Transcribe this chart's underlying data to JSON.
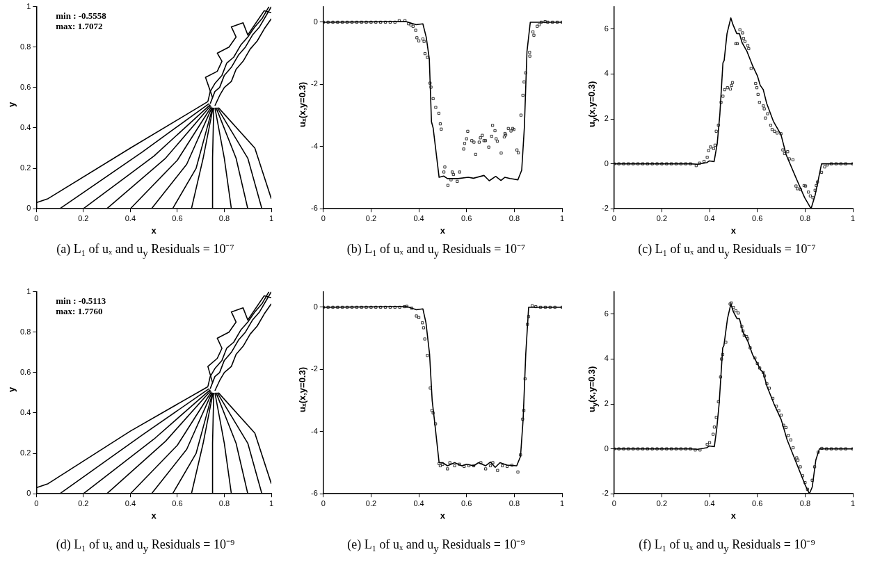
{
  "chart_data": [
    {
      "type": "line",
      "title": "(a) L₁ of uₓ and u$_{y}$ Residuals = 10⁻⁷",
      "xlabel": "x",
      "ylabel": "y",
      "xlim": [
        0,
        1
      ],
      "ylim": [
        0,
        1
      ],
      "xticks": [
        0,
        0.2,
        0.4,
        0.6,
        0.8,
        1
      ],
      "yticks": [
        0,
        0.2,
        0.4,
        0.6,
        0.8,
        1
      ],
      "annotations": [
        "min : -0.5558",
        "max: 1.7072"
      ],
      "line_style": "solid",
      "series": [
        {
          "color": "#000000",
          "x": [
            0,
            0.05,
            0.4,
            0.73
          ],
          "values": [
            0.03,
            0.05,
            0.3,
            0.53
          ]
        },
        {
          "color": "#000000",
          "x": [
            0.1,
            0.45,
            0.735
          ],
          "values": [
            0,
            0.28,
            0.52
          ]
        },
        {
          "color": "#000000",
          "x": [
            0.2,
            0.5,
            0.74
          ],
          "values": [
            0,
            0.26,
            0.515
          ]
        },
        {
          "color": "#000000",
          "x": [
            0.3,
            0.55,
            0.742
          ],
          "values": [
            0,
            0.25,
            0.51
          ]
        },
        {
          "color": "#000000",
          "x": [
            0.4,
            0.6,
            0.745
          ],
          "values": [
            0,
            0.24,
            0.505
          ]
        },
        {
          "color": "#000000",
          "x": [
            0.49,
            0.64,
            0.747
          ],
          "values": [
            0,
            0.22,
            0.5
          ]
        },
        {
          "color": "#000000",
          "x": [
            0.58,
            0.68,
            0.75
          ],
          "values": [
            0,
            0.2,
            0.5
          ]
        },
        {
          "color": "#000000",
          "x": [
            0.66,
            0.71,
            0.752
          ],
          "values": [
            0,
            0.25,
            0.5
          ]
        },
        {
          "color": "#000000",
          "x": [
            0.75,
            0.75,
            0.755
          ],
          "values": [
            0,
            0.25,
            0.5
          ]
        },
        {
          "color": "#000000",
          "x": [
            0.83,
            0.8,
            0.76
          ],
          "values": [
            0,
            0.25,
            0.5
          ]
        },
        {
          "color": "#000000",
          "x": [
            0.9,
            0.85,
            0.765
          ],
          "values": [
            0,
            0.25,
            0.5
          ]
        },
        {
          "color": "#000000",
          "x": [
            0.96,
            0.9,
            0.77
          ],
          "values": [
            0,
            0.25,
            0.5
          ]
        },
        {
          "color": "#000000",
          "x": [
            1,
            0.93,
            0.775
          ],
          "values": [
            0.05,
            0.3,
            0.5
          ]
        },
        {
          "color": "#000000",
          "x": [
            0.74,
            0.76,
            0.78,
            0.8,
            0.83,
            0.86,
            0.89,
            0.92,
            0.95,
            0.98,
            1
          ],
          "values": [
            0.52,
            0.58,
            0.6,
            0.66,
            0.7,
            0.76,
            0.8,
            0.86,
            0.9,
            0.96,
            1
          ]
        },
        {
          "color": "#000000",
          "x": [
            0.76,
            0.78,
            0.8,
            0.83,
            0.85,
            0.88,
            0.91,
            0.94,
            0.97,
            1
          ],
          "values": [
            0.51,
            0.56,
            0.6,
            0.63,
            0.69,
            0.73,
            0.79,
            0.83,
            0.89,
            0.94
          ]
        },
        {
          "color": "#000000",
          "x": [
            0.73,
            0.74,
            0.76,
            0.79,
            0.81,
            0.84,
            0.87,
            0.9,
            0.93,
            0.96,
            0.99
          ],
          "values": [
            0.53,
            0.58,
            0.62,
            0.66,
            0.72,
            0.75,
            0.81,
            0.85,
            0.9,
            0.94,
            1
          ]
        },
        {
          "color": "#000000",
          "x": [
            0.75,
            0.72,
            0.77,
            0.79,
            0.77,
            0.82,
            0.85,
            0.83,
            0.88,
            0.9,
            0.97,
            1
          ],
          "values": [
            0.55,
            0.65,
            0.68,
            0.73,
            0.77,
            0.8,
            0.85,
            0.9,
            0.92,
            0.86,
            0.98,
            0.97
          ]
        }
      ]
    },
    {
      "type": "line",
      "title": "(b) L₁ of uₓ and u$_{y}$ Residuals = 10⁻⁷",
      "xlabel": "x",
      "ylabel": "uₓ(x,y=0.3)",
      "xlim": [
        0,
        1
      ],
      "ylim": [
        -6,
        0.5
      ],
      "xticks": [
        0,
        0.2,
        0.4,
        0.6,
        0.8,
        1
      ],
      "yticks": [
        -6,
        -4,
        -2,
        0
      ],
      "line_style": "solid",
      "series": [
        {
          "type": "line",
          "marker": "none",
          "color": "#000000",
          "x": [
            0,
            0.346,
            0.389,
            0.417,
            0.431,
            0.444,
            0.453,
            0.46,
            0.485,
            0.504,
            0.52,
            0.564,
            0.607,
            0.629,
            0.673,
            0.695,
            0.722,
            0.744,
            0.76,
            0.782,
            0.815,
            0.831,
            0.842,
            0.853,
            0.867,
            1
          ],
          "values": [
            0,
            0.02,
            -0.08,
            -0.05,
            -0.48,
            -1.18,
            -3.2,
            -3.4,
            -4.99,
            -4.95,
            -5.03,
            -5.03,
            -4.99,
            -5.02,
            -4.93,
            -5.1,
            -4.96,
            -5.09,
            -4.99,
            -5.03,
            -5.07,
            -4.76,
            -3.4,
            -0.95,
            0,
            0
          ]
        },
        {
          "type": "scatter",
          "marker": "square",
          "color": "#333333",
          "x": [
            0,
            0.02,
            0.04,
            0.06,
            0.08,
            0.1,
            0.12,
            0.14,
            0.16,
            0.18,
            0.2,
            0.22,
            0.24,
            0.26,
            0.28,
            0.3,
            0.318,
            0.342,
            0.357,
            0.367,
            0.376,
            0.387,
            0.392,
            0.4,
            0.417,
            0.422,
            0.426,
            0.436,
            0.447,
            0.451,
            0.46,
            0.471,
            0.484,
            0.49,
            0.494,
            0.509,
            0.505,
            0.522,
            0.535,
            0.54,
            0.545,
            0.561,
            0.571,
            0.588,
            0.592,
            0.6,
            0.605,
            0.622,
            0.631,
            0.638,
            0.653,
            0.658,
            0.666,
            0.673,
            0.679,
            0.693,
            0.705,
            0.709,
            0.719,
            0.724,
            0.729,
            0.745,
            0.758,
            0.761,
            0.764,
            0.775,
            0.786,
            0.793,
            0.798,
            0.811,
            0.817,
            0.828,
            0.836,
            0.841,
            0.847,
            0.864,
            0.865,
            0.878,
            0.882,
            0.896,
            0.904,
            0.913,
            0.929,
            0.94,
            0.96,
            0.98,
            1
          ],
          "values": [
            0,
            0,
            0,
            0,
            0,
            0,
            0,
            0,
            0,
            0,
            0,
            0,
            0,
            0,
            0,
            0,
            0.05,
            0.05,
            -0.05,
            -0.09,
            -0.13,
            -0.26,
            -0.5,
            -0.6,
            -0.54,
            -0.62,
            -1.01,
            -1.13,
            -1.96,
            -2.09,
            -2.46,
            -2.74,
            -2.93,
            -3.27,
            -3.44,
            -4.66,
            -4.82,
            -5.25,
            -5.07,
            -4.82,
            -4.9,
            -5.12,
            -4.82,
            -4.08,
            -3.9,
            -3.75,
            -3.51,
            -3.81,
            -3.86,
            -4.25,
            -3.86,
            -3.72,
            -3.64,
            -3.81,
            -3.81,
            -4.02,
            -3.67,
            -3.32,
            -3.49,
            -3.75,
            -3.83,
            -4.21,
            -3.69,
            -3.58,
            -3.63,
            -3.42,
            -3.5,
            -3.42,
            -3.45,
            -4.11,
            -4.2,
            -2.99,
            -2.35,
            -1.92,
            -1.63,
            -0.97,
            -1.09,
            -0.31,
            -0.42,
            -0.13,
            -0.08,
            0,
            0.02,
            0,
            0,
            0,
            0
          ]
        }
      ]
    },
    {
      "type": "line",
      "title": "(c) L₁ of uₓ and u$_{y}$ Residuals = 10⁻⁷",
      "xlabel": "x",
      "ylabel": "u$_{y}$(x,y=0.3)",
      "xlim": [
        0,
        1
      ],
      "ylim": [
        -2,
        7
      ],
      "xticks": [
        0,
        0.2,
        0.4,
        0.6,
        0.8,
        1
      ],
      "yticks": [
        -2,
        0,
        2,
        4,
        6
      ],
      "line_style": "solid",
      "series": [
        {
          "type": "line",
          "marker": "none",
          "color": "#000000",
          "x": [
            0,
            0.317,
            0.35,
            0.388,
            0.399,
            0.419,
            0.432,
            0.443,
            0.456,
            0.461,
            0.473,
            0.489,
            0.498,
            0.514,
            0.525,
            0.536,
            0.557,
            0.579,
            0.601,
            0.612,
            0.625,
            0.639,
            0.667,
            0.699,
            0.721,
            0.765,
            0.798,
            0.825,
            0.842,
            0.869,
            1
          ],
          "values": [
            0,
            0,
            -0.02,
            0.05,
            0.13,
            0.1,
            0.9,
            2.2,
            4.5,
            4.6,
            5.8,
            6.5,
            6.2,
            5.8,
            5.8,
            5.4,
            5,
            4.4,
            3.9,
            3.5,
            3.3,
            2.7,
            1.9,
            1.3,
            0.4,
            -0.7,
            -1.5,
            -2,
            -1.4,
            0,
            0
          ]
        },
        {
          "type": "scatter",
          "marker": "square",
          "color": "#333333",
          "x": [
            0,
            0.02,
            0.04,
            0.06,
            0.08,
            0.1,
            0.12,
            0.14,
            0.16,
            0.18,
            0.2,
            0.22,
            0.24,
            0.26,
            0.28,
            0.3,
            0.32,
            0.344,
            0.358,
            0.377,
            0.39,
            0.396,
            0.404,
            0.417,
            0.423,
            0.428,
            0.437,
            0.448,
            0.456,
            0.463,
            0.475,
            0.487,
            0.492,
            0.496,
            0.51,
            0.516,
            0.527,
            0.538,
            0.542,
            0.548,
            0.56,
            0.564,
            0.574,
            0.593,
            0.598,
            0.603,
            0.609,
            0.625,
            0.629,
            0.634,
            0.643,
            0.656,
            0.662,
            0.672,
            0.683,
            0.699,
            0.707,
            0.714,
            0.727,
            0.734,
            0.749,
            0.762,
            0.768,
            0.781,
            0.796,
            0.802,
            0.814,
            0.822,
            0.833,
            0.842,
            0.847,
            0.852,
            0.869,
            0.882,
            0.893,
            0.91,
            0.93,
            0.95,
            0.97,
            1
          ],
          "values": [
            0,
            0,
            0,
            0,
            0,
            0,
            0,
            0,
            0,
            0,
            0,
            0,
            0,
            0,
            0,
            0,
            0,
            -0.08,
            0.03,
            0.11,
            0.29,
            0.59,
            0.75,
            0.68,
            0.83,
            1.45,
            1.72,
            2.74,
            3.01,
            3.3,
            3.39,
            3.33,
            3.49,
            3.62,
            5.35,
            5.35,
            5.97,
            5.83,
            5.59,
            5.45,
            5.27,
            5.13,
            4.25,
            3.58,
            3.39,
            3.09,
            2.74,
            2.58,
            2.45,
            2.04,
            2.23,
            1.72,
            1.53,
            1.45,
            1.37,
            1.34,
            0.62,
            0.46,
            0.54,
            0.22,
            0.18,
            -0.99,
            -1.11,
            -1.15,
            -0.97,
            -0.99,
            -1.26,
            -1.43,
            -1.51,
            -1.18,
            -0.97,
            -0.81,
            -0.38,
            -0.14,
            -0.05,
            0,
            0,
            0,
            0,
            0
          ]
        }
      ]
    },
    {
      "type": "line",
      "title": "(d) L₁ of uₓ and u$_{y}$ Residuals = 10⁻⁹",
      "xlabel": "x",
      "ylabel": "y",
      "xlim": [
        0,
        1
      ],
      "ylim": [
        0,
        1
      ],
      "xticks": [
        0,
        0.2,
        0.4,
        0.6,
        0.8,
        1
      ],
      "yticks": [
        0,
        0.2,
        0.4,
        0.6,
        0.8,
        1
      ],
      "annotations": [
        "min : -0.5113",
        "max: 1.7760"
      ],
      "line_style": "solid",
      "series": [
        {
          "color": "#000000",
          "x": [
            0,
            0.05,
            0.4,
            0.73
          ],
          "values": [
            0.03,
            0.05,
            0.31,
            0.53
          ]
        },
        {
          "color": "#000000",
          "x": [
            0.1,
            0.45,
            0.735
          ],
          "values": [
            0,
            0.29,
            0.52
          ]
        },
        {
          "color": "#000000",
          "x": [
            0.2,
            0.5,
            0.74
          ],
          "values": [
            0,
            0.27,
            0.515
          ]
        },
        {
          "color": "#000000",
          "x": [
            0.3,
            0.55,
            0.742
          ],
          "values": [
            0,
            0.26,
            0.51
          ]
        },
        {
          "color": "#000000",
          "x": [
            0.4,
            0.6,
            0.745
          ],
          "values": [
            0,
            0.24,
            0.505
          ]
        },
        {
          "color": "#000000",
          "x": [
            0.49,
            0.64,
            0.747
          ],
          "values": [
            0,
            0.22,
            0.5
          ]
        },
        {
          "color": "#000000",
          "x": [
            0.58,
            0.68,
            0.75
          ],
          "values": [
            0,
            0.2,
            0.5
          ]
        },
        {
          "color": "#000000",
          "x": [
            0.66,
            0.71,
            0.752
          ],
          "values": [
            0,
            0.25,
            0.5
          ]
        },
        {
          "color": "#000000",
          "x": [
            0.75,
            0.75,
            0.755
          ],
          "values": [
            0,
            0.25,
            0.5
          ]
        },
        {
          "color": "#000000",
          "x": [
            0.83,
            0.8,
            0.76
          ],
          "values": [
            0,
            0.25,
            0.5
          ]
        },
        {
          "color": "#000000",
          "x": [
            0.9,
            0.85,
            0.765
          ],
          "values": [
            0,
            0.25,
            0.5
          ]
        },
        {
          "color": "#000000",
          "x": [
            0.96,
            0.9,
            0.77
          ],
          "values": [
            0,
            0.25,
            0.5
          ]
        },
        {
          "color": "#000000",
          "x": [
            1,
            0.93,
            0.775
          ],
          "values": [
            0.05,
            0.3,
            0.5
          ]
        },
        {
          "color": "#000000",
          "x": [
            0.74,
            0.76,
            0.78,
            0.8,
            0.83,
            0.86,
            0.89,
            0.92,
            0.95,
            0.98,
            1
          ],
          "values": [
            0.52,
            0.58,
            0.6,
            0.66,
            0.7,
            0.76,
            0.8,
            0.86,
            0.9,
            0.96,
            1
          ]
        },
        {
          "color": "#000000",
          "x": [
            0.76,
            0.78,
            0.8,
            0.83,
            0.85,
            0.88,
            0.91,
            0.94,
            0.97,
            1
          ],
          "values": [
            0.51,
            0.56,
            0.6,
            0.63,
            0.69,
            0.73,
            0.79,
            0.83,
            0.89,
            0.94
          ]
        },
        {
          "color": "#000000",
          "x": [
            0.73,
            0.74,
            0.76,
            0.79,
            0.81,
            0.84,
            0.87,
            0.9,
            0.93,
            0.96,
            0.99
          ],
          "values": [
            0.53,
            0.58,
            0.62,
            0.66,
            0.72,
            0.75,
            0.81,
            0.85,
            0.9,
            0.94,
            1
          ]
        },
        {
          "color": "#000000",
          "x": [
            0.75,
            0.73,
            0.77,
            0.79,
            0.77,
            0.82,
            0.85,
            0.83,
            0.88,
            0.9,
            0.97,
            1
          ],
          "values": [
            0.55,
            0.63,
            0.67,
            0.72,
            0.77,
            0.8,
            0.85,
            0.9,
            0.92,
            0.86,
            0.98,
            0.97
          ]
        }
      ]
    },
    {
      "type": "line",
      "title": "(e) L₁ of uₓ and u$_{y}$ Residuals = 10⁻⁹",
      "xlabel": "x",
      "ylabel": "uₓ(x,y=0.3)",
      "xlim": [
        0,
        1
      ],
      "ylim": [
        -6,
        0.5
      ],
      "xticks": [
        0,
        0.2,
        0.4,
        0.6,
        0.8,
        1
      ],
      "yticks": [
        -6,
        -4,
        -2,
        0
      ],
      "line_style": "solid",
      "series": [
        {
          "type": "line",
          "marker": "none",
          "color": "#000000",
          "x": [
            0,
            0.35,
            0.39,
            0.417,
            0.43,
            0.445,
            0.456,
            0.465,
            0.485,
            0.5,
            0.52,
            0.55,
            0.58,
            0.6,
            0.63,
            0.65,
            0.68,
            0.7,
            0.72,
            0.74,
            0.77,
            0.81,
            0.826,
            0.837,
            0.848,
            0.86,
            1
          ],
          "values": [
            0,
            0.02,
            -0.08,
            -0.05,
            -0.5,
            -1.5,
            -3,
            -3.6,
            -5,
            -5,
            -5.1,
            -5,
            -5.1,
            -5.05,
            -5.1,
            -5,
            -5.1,
            -4.98,
            -5.15,
            -5,
            -5.08,
            -5.1,
            -4.8,
            -3.6,
            -1.5,
            0,
            0
          ]
        },
        {
          "type": "scatter",
          "marker": "square",
          "color": "#333333",
          "x": [
            0,
            0.02,
            0.04,
            0.06,
            0.08,
            0.1,
            0.12,
            0.14,
            0.16,
            0.18,
            0.2,
            0.22,
            0.24,
            0.26,
            0.28,
            0.3,
            0.32,
            0.34,
            0.35,
            0.37,
            0.39,
            0.4,
            0.415,
            0.42,
            0.425,
            0.436,
            0.448,
            0.455,
            0.46,
            0.47,
            0.485,
            0.49,
            0.5,
            0.52,
            0.53,
            0.55,
            0.57,
            0.59,
            0.61,
            0.63,
            0.66,
            0.68,
            0.7,
            0.71,
            0.73,
            0.75,
            0.77,
            0.79,
            0.815,
            0.826,
            0.835,
            0.84,
            0.845,
            0.855,
            0.86,
            0.875,
            0.89,
            0.91,
            0.93,
            0.95,
            0.97,
            1
          ],
          "values": [
            0,
            0,
            0,
            0,
            0,
            0,
            0,
            0,
            0,
            0,
            0,
            0,
            0,
            0,
            0,
            0,
            0,
            0.02,
            0.03,
            -0.03,
            -0.28,
            -0.33,
            -0.5,
            -0.66,
            -1.02,
            -1.55,
            -2.6,
            -3.32,
            -3.4,
            -3.75,
            -5.03,
            -5.1,
            -5.05,
            -5.2,
            -5,
            -5.1,
            -5.05,
            -5.12,
            -5.1,
            -5.1,
            -5,
            -5.2,
            -5.1,
            -5,
            -5.25,
            -5.1,
            -5.12,
            -5.08,
            -5.3,
            -4.75,
            -3.6,
            -3.32,
            -2.3,
            -0.55,
            -0.3,
            0.05,
            0.02,
            0,
            0,
            0,
            0,
            0
          ]
        }
      ]
    },
    {
      "type": "line",
      "title": "(f) L₁ of uₓ and u$_{y}$ Residuals = 10⁻⁹",
      "xlabel": "x",
      "ylabel": "u$_{y}$(x,y=0.3)",
      "xlim": [
        0,
        1
      ],
      "ylim": [
        -2,
        7
      ],
      "xticks": [
        0,
        0.2,
        0.4,
        0.6,
        0.8,
        1
      ],
      "yticks": [
        -2,
        0,
        2,
        4,
        6
      ],
      "line_style": "solid",
      "series": [
        {
          "type": "line",
          "marker": "none",
          "color": "#000000",
          "x": [
            0,
            0.317,
            0.35,
            0.388,
            0.399,
            0.42,
            0.43,
            0.44,
            0.455,
            0.46,
            0.475,
            0.489,
            0.5,
            0.515,
            0.525,
            0.54,
            0.56,
            0.58,
            0.6,
            0.615,
            0.625,
            0.64,
            0.67,
            0.7,
            0.725,
            0.77,
            0.8,
            0.818,
            0.83,
            0.845,
            0.86,
            1
          ],
          "values": [
            0,
            0,
            -0.02,
            0.05,
            0.13,
            0.1,
            0.9,
            2,
            4.5,
            4.6,
            5.8,
            6.45,
            6.1,
            5.8,
            5.8,
            5.2,
            4.8,
            4.2,
            3.8,
            3.5,
            3.4,
            2.8,
            2,
            1.3,
            0.4,
            -0.8,
            -1.6,
            -2,
            -1.7,
            -0.5,
            0,
            0
          ]
        },
        {
          "type": "scatter",
          "marker": "square",
          "color": "#333333",
          "x": [
            0,
            0.02,
            0.04,
            0.06,
            0.08,
            0.1,
            0.12,
            0.14,
            0.16,
            0.18,
            0.2,
            0.22,
            0.24,
            0.26,
            0.28,
            0.3,
            0.32,
            0.34,
            0.36,
            0.39,
            0.4,
            0.415,
            0.42,
            0.428,
            0.437,
            0.446,
            0.45,
            0.455,
            0.468,
            0.486,
            0.491,
            0.5,
            0.51,
            0.52,
            0.535,
            0.54,
            0.545,
            0.555,
            0.56,
            0.57,
            0.59,
            0.6,
            0.61,
            0.625,
            0.63,
            0.64,
            0.65,
            0.665,
            0.68,
            0.69,
            0.7,
            0.71,
            0.72,
            0.73,
            0.74,
            0.75,
            0.765,
            0.77,
            0.78,
            0.79,
            0.8,
            0.81,
            0.83,
            0.84,
            0.855,
            0.87,
            0.89,
            0.91,
            0.93,
            0.95,
            0.97,
            1
          ],
          "values": [
            0,
            0,
            0,
            0,
            0,
            0,
            0,
            0,
            0,
            0,
            0,
            0,
            0,
            0,
            0,
            0,
            0,
            -0.05,
            -0.05,
            0.2,
            0.28,
            0.65,
            0.97,
            1.4,
            2.1,
            3.2,
            4,
            4.2,
            4.75,
            6.45,
            6.5,
            6.3,
            6.15,
            6.05,
            5.45,
            5.25,
            5.05,
            5,
            4.9,
            4.5,
            4.05,
            3.8,
            3.6,
            3.4,
            3.25,
            2.9,
            2.7,
            2.25,
            1.9,
            1.7,
            1.5,
            1.05,
            0.95,
            0.6,
            0.4,
            0.05,
            -0.4,
            -0.5,
            -0.8,
            -1.2,
            -1.5,
            -1.8,
            -1.4,
            -0.8,
            -0.15,
            0.02,
            0,
            0,
            0,
            0,
            0,
            0
          ]
        }
      ]
    }
  ]
}
